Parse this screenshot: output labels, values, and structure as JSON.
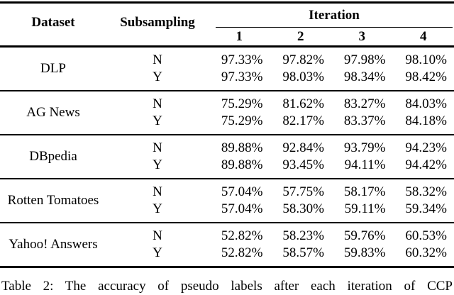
{
  "table": {
    "headers": {
      "dataset": "Dataset",
      "subsampling": "Subsampling",
      "iteration": "Iteration",
      "iteration_cols": [
        "1",
        "2",
        "3",
        "4"
      ]
    },
    "groups": [
      {
        "dataset": "DLP",
        "rows": [
          {
            "subsampling": "N",
            "values": [
              "97.33%",
              "97.82%",
              "97.98%",
              "98.10%"
            ]
          },
          {
            "subsampling": "Y",
            "values": [
              "97.33%",
              "98.03%",
              "98.34%",
              "98.42%"
            ]
          }
        ]
      },
      {
        "dataset": "AG News",
        "rows": [
          {
            "subsampling": "N",
            "values": [
              "75.29%",
              "81.62%",
              "83.27%",
              "84.03%"
            ]
          },
          {
            "subsampling": "Y",
            "values": [
              "75.29%",
              "82.17%",
              "83.37%",
              "84.18%"
            ]
          }
        ]
      },
      {
        "dataset": "DBpedia",
        "rows": [
          {
            "subsampling": "N",
            "values": [
              "89.88%",
              "92.84%",
              "93.79%",
              "94.23%"
            ]
          },
          {
            "subsampling": "Y",
            "values": [
              "89.88%",
              "93.45%",
              "94.11%",
              "94.42%"
            ]
          }
        ]
      },
      {
        "dataset": "Rotten Tomatoes",
        "rows": [
          {
            "subsampling": "N",
            "values": [
              "57.04%",
              "57.75%",
              "58.17%",
              "58.32%"
            ]
          },
          {
            "subsampling": "Y",
            "values": [
              "57.04%",
              "58.30%",
              "59.11%",
              "59.34%"
            ]
          }
        ]
      },
      {
        "dataset": "Yahoo! Answers",
        "rows": [
          {
            "subsampling": "N",
            "values": [
              "52.82%",
              "58.23%",
              "59.76%",
              "60.53%"
            ]
          },
          {
            "subsampling": "Y",
            "values": [
              "52.82%",
              "58.57%",
              "59.83%",
              "60.32%"
            ]
          }
        ]
      }
    ]
  },
  "caption": "Table 2: The accuracy of pseudo labels after each iteration of CCP",
  "colors": {
    "text": "#000000",
    "background": "#ffffff",
    "rule": "#000000"
  }
}
